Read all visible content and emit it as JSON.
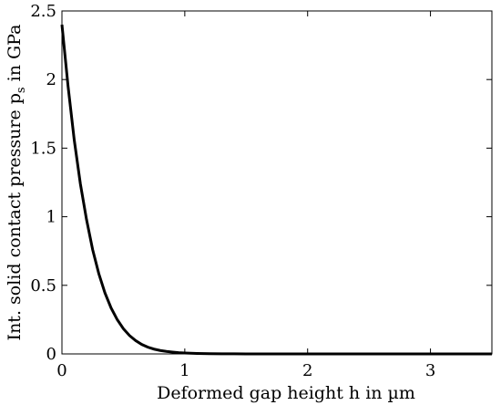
{
  "chart_data": {
    "type": "line",
    "xlabel": "Deformed gap height h in µm",
    "ylabel_main": "Int. solid contact pressure p",
    "ylabel_sub": "s",
    "ylabel_tail": " in GPa",
    "xlim": [
      0,
      3.5
    ],
    "ylim": [
      0,
      2.5
    ],
    "xticks": [
      0,
      1,
      2,
      3
    ],
    "xtick_labels": [
      "0",
      "1",
      "2",
      "3"
    ],
    "yticks": [
      0,
      0.5,
      1,
      1.5,
      2,
      2.5
    ],
    "ytick_labels": [
      "0",
      "0.5",
      "1",
      "1.5",
      "2",
      "2.5"
    ],
    "grid": false,
    "line_color": "#000000",
    "series": [
      {
        "x": [
          0,
          0.05,
          0.1,
          0.15,
          0.2,
          0.25,
          0.3,
          0.35,
          0.4,
          0.45,
          0.5,
          0.55,
          0.6,
          0.65,
          0.7,
          0.75,
          0.8,
          0.85,
          0.9,
          0.95,
          1.0,
          1.1,
          1.2,
          1.3,
          1.4,
          1.5,
          1.75,
          2.0,
          2.5,
          3.0,
          3.5
        ],
        "y": [
          2.4,
          1.95,
          1.56,
          1.24,
          0.98,
          0.76,
          0.585,
          0.445,
          0.335,
          0.25,
          0.184,
          0.134,
          0.097,
          0.069,
          0.049,
          0.035,
          0.025,
          0.018,
          0.013,
          0.009,
          0.0065,
          0.0035,
          0.0018,
          0.001,
          0.0005,
          0.0003,
          0.0001,
          3e-05,
          0.0,
          0.0,
          0.0
        ]
      }
    ]
  }
}
